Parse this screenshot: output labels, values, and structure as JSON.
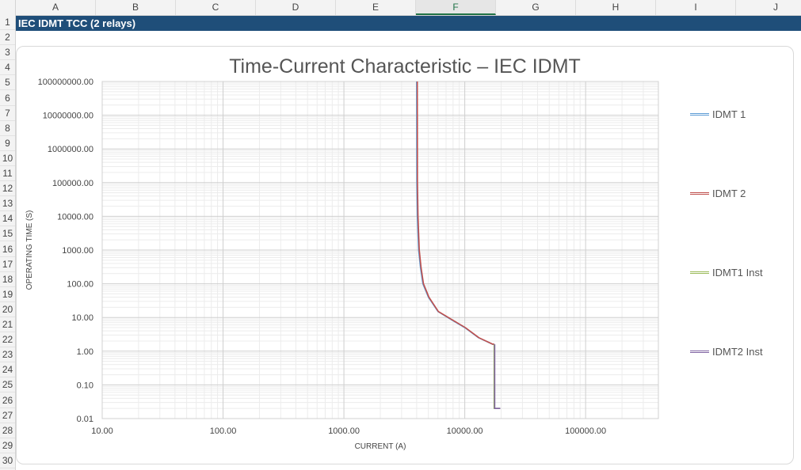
{
  "columns": [
    "A",
    "B",
    "C",
    "D",
    "E",
    "F",
    "G",
    "H",
    "I",
    "J"
  ],
  "selected_column": "F",
  "rows": [
    "1",
    "2",
    "3",
    "4",
    "5",
    "6",
    "7",
    "8",
    "9",
    "10",
    "11",
    "12",
    "13",
    "14",
    "15",
    "16",
    "17",
    "18",
    "19",
    "20",
    "21",
    "22",
    "23",
    "24",
    "25",
    "26",
    "27",
    "28",
    "29",
    "30"
  ],
  "sheet": {
    "title_cell": "IEC IDMT TCC (2 relays)"
  },
  "colors": {
    "banner": "#1f4e79",
    "idmt1": "#5b9bd5",
    "idmt2": "#c0504d",
    "idmt1_inst": "#9bbb59",
    "idmt2_inst": "#8064a2"
  },
  "chart_data": {
    "type": "line",
    "title": "Time-Current Characteristic – IEC IDMT",
    "xlabel": "CURRENT (A)",
    "ylabel": "OPERATING TIME (S)",
    "xscale": "log",
    "yscale": "log",
    "xlim": [
      10,
      400000
    ],
    "ylim": [
      0.01,
      100000000
    ],
    "x_ticks": [
      "10.00",
      "100.00",
      "1000.00",
      "10000.00",
      "100000.00"
    ],
    "y_ticks": [
      "0.01",
      "0.10",
      "1.00",
      "10.00",
      "100.00",
      "1000.00",
      "10000.00",
      "100000.00",
      "1000000.00",
      "10000000.00",
      "100000000.00"
    ],
    "grid": true,
    "legend_position": "right",
    "series": [
      {
        "name": "IDMT 1",
        "x": [
          4000,
          4010,
          4050,
          4150,
          4300,
          4500,
          5000,
          6000,
          8000,
          10000,
          13000,
          17000,
          17500
        ],
        "y": [
          100000000,
          100000,
          10000,
          1000,
          300,
          100,
          40,
          15,
          8,
          5,
          2.5,
          1.6,
          1.6
        ]
      },
      {
        "name": "IDMT 2",
        "x": [
          4050,
          4060,
          4100,
          4200,
          4350,
          4550,
          5050,
          6050,
          8100,
          10100,
          13100,
          17100,
          17600
        ],
        "y": [
          100000000,
          100000,
          10000,
          1000,
          300,
          100,
          40,
          15,
          8,
          5,
          2.5,
          1.6,
          1.6
        ]
      },
      {
        "name": "IDMT1 Inst",
        "x": [
          17500,
          17500,
          19500
        ],
        "y": [
          1.6,
          0.02,
          0.02
        ]
      },
      {
        "name": "IDMT2 Inst",
        "x": [
          17700,
          17700,
          19700
        ],
        "y": [
          1.6,
          0.02,
          0.02
        ]
      }
    ]
  }
}
